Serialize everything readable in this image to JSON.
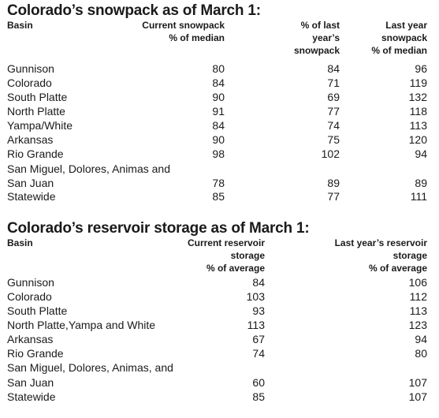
{
  "snowpack": {
    "title": "Colorado’s snowpack as of March 1:",
    "headers": {
      "basin": "Basin",
      "current": [
        "Current snowpack",
        "% of median"
      ],
      "pct_last": [
        "% of last",
        "year’s",
        "snowpack"
      ],
      "last_year": [
        "Last year",
        "snowpack",
        "% of median"
      ]
    },
    "rows": [
      {
        "basin": "Gunnison",
        "current": "80",
        "pct_last": "84",
        "last_year": "96"
      },
      {
        "basin": "Colorado",
        "current": "84",
        "pct_last": "71",
        "last_year": "119"
      },
      {
        "basin": "South Platte",
        "current": "90",
        "pct_last": "69",
        "last_year": "132"
      },
      {
        "basin": "North Platte",
        "current": "91",
        "pct_last": "77",
        "last_year": "118"
      },
      {
        "basin": "Yampa/White",
        "current": "84",
        "pct_last": "74",
        "last_year": "113"
      },
      {
        "basin": "Arkansas",
        "current": "90",
        "pct_last": "75",
        "last_year": "120"
      },
      {
        "basin": "Rio Grande",
        "current": "98",
        "pct_last": "102",
        "last_year": "94"
      },
      {
        "basin": "San Miguel, Dolores, Animas and",
        "current": "",
        "pct_last": "",
        "last_year": ""
      },
      {
        "basin": "San Juan",
        "current": "78",
        "pct_last": "89",
        "last_year": "89"
      },
      {
        "basin": "Statewide",
        "current": "85",
        "pct_last": "77",
        "last_year": "111"
      }
    ]
  },
  "reservoir": {
    "title": "Colorado’s reservoir storage as of March 1:",
    "headers": {
      "basin": "Basin",
      "current": [
        "Current reservoir",
        "storage",
        "% of average"
      ],
      "last_year": [
        "Last year’s reservoir",
        "storage",
        "% of average"
      ]
    },
    "rows": [
      {
        "basin": "Gunnison",
        "current": "84",
        "last_year": "106"
      },
      {
        "basin": "Colorado",
        "current": "103",
        "last_year": "112"
      },
      {
        "basin": "South Platte",
        "current": "93",
        "last_year": "113"
      },
      {
        "basin": "North Platte,Yampa and White",
        "current": "113",
        "last_year": "123"
      },
      {
        "basin": "Arkansas",
        "current": "67",
        "last_year": "94"
      },
      {
        "basin": "Rio Grande",
        "current": "74",
        "last_year": "80"
      },
      {
        "basin": "San Miguel, Dolores, Animas, and",
        "current": "",
        "last_year": ""
      },
      {
        "basin": "San Juan",
        "current": "60",
        "last_year": "107"
      },
      {
        "basin": "Statewide",
        "current": "85",
        "last_year": "107"
      }
    ]
  }
}
